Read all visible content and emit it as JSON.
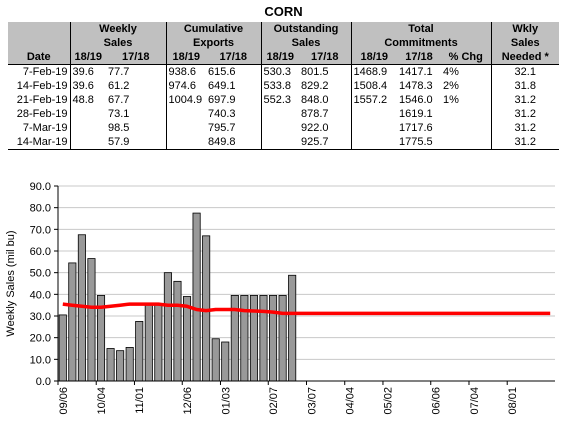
{
  "title": "CORN",
  "table": {
    "group_headers": {
      "weekly": [
        "Weekly",
        "Sales"
      ],
      "cumulative": [
        "Cumulative",
        "Exports"
      ],
      "outstanding": [
        "Outstanding",
        "Sales"
      ],
      "total": [
        "Total",
        "Commitments"
      ],
      "needed": [
        "Wkly",
        "Sales",
        "Needed *"
      ]
    },
    "sub_headers": [
      "Date",
      "18/19",
      "17/18",
      "18/19",
      "17/18",
      "18/19",
      "17/18",
      "18/19",
      "17/18",
      "% Chg"
    ],
    "rows": [
      [
        "7-Feb-19",
        "39.6",
        "77.7",
        "938.6",
        "615.6",
        "530.3",
        "801.5",
        "1468.9",
        "1417.1",
        "4%",
        "32.1"
      ],
      [
        "14-Feb-19",
        "39.6",
        "61.2",
        "974.6",
        "649.1",
        "533.8",
        "829.2",
        "1508.4",
        "1478.3",
        "2%",
        "31.8"
      ],
      [
        "21-Feb-19",
        "48.8",
        "67.7",
        "1004.9",
        "697.9",
        "552.3",
        "848.0",
        "1557.2",
        "1546.0",
        "1%",
        "31.2"
      ],
      [
        "28-Feb-19",
        "",
        "73.1",
        "",
        "740.3",
        "",
        "878.7",
        "",
        "1619.1",
        "",
        "31.2"
      ],
      [
        "7-Mar-19",
        "",
        "98.5",
        "",
        "795.7",
        "",
        "922.0",
        "",
        "1717.6",
        "",
        "31.2"
      ],
      [
        "14-Mar-19",
        "",
        "57.9",
        "",
        "849.8",
        "",
        "925.7",
        "",
        "1775.5",
        "",
        "31.2"
      ]
    ]
  },
  "chart_data": {
    "type": "bar",
    "ylabel": "Weekly Sales (mil bu)",
    "ylim": [
      0,
      90
    ],
    "yticks": [
      "0.0",
      "10.0",
      "20.0",
      "30.0",
      "40.0",
      "50.0",
      "60.0",
      "70.0",
      "80.0",
      "90.0"
    ],
    "xtick_labels": [
      "09/06",
      "10/04",
      "11/01",
      "12/06",
      "01/03",
      "02/07",
      "03/07",
      "04/04",
      "05/02",
      "06/06",
      "07/04",
      "08/01"
    ],
    "xtick_week_index": [
      0,
      4,
      8,
      13,
      17,
      22,
      26,
      30,
      34,
      39,
      43,
      47
    ],
    "total_weeks": 52,
    "grid": true,
    "series": [
      {
        "kind": "bar",
        "color": "#999999",
        "values": [
          30.5,
          54.5,
          67.5,
          56.5,
          39.5,
          15,
          14,
          15.5,
          27.5,
          35,
          35,
          50,
          46,
          39,
          77.5,
          67,
          19.5,
          18,
          39.5,
          39.5,
          39.5,
          39.5,
          39.5,
          39.5,
          48.8
        ]
      },
      {
        "kind": "line",
        "color": "#ff0000",
        "values": [
          35.5,
          35,
          34.5,
          34,
          34,
          34.5,
          35,
          35.5,
          35.5,
          35.5,
          35.5,
          35,
          35,
          34.5,
          33,
          32.5,
          33,
          33,
          33,
          32.5,
          32.3,
          32.1,
          31.8,
          31.2,
          31.2,
          31.2,
          31.2,
          31.2,
          31.2,
          31.2,
          31.2,
          31.2,
          31.2,
          31.2,
          31.2,
          31.2,
          31.2,
          31.2,
          31.2,
          31.2,
          31.2,
          31.2,
          31.2,
          31.2,
          31.2,
          31.2,
          31.2,
          31.2,
          31.2,
          31.2,
          31.2,
          31.2
        ]
      }
    ]
  }
}
